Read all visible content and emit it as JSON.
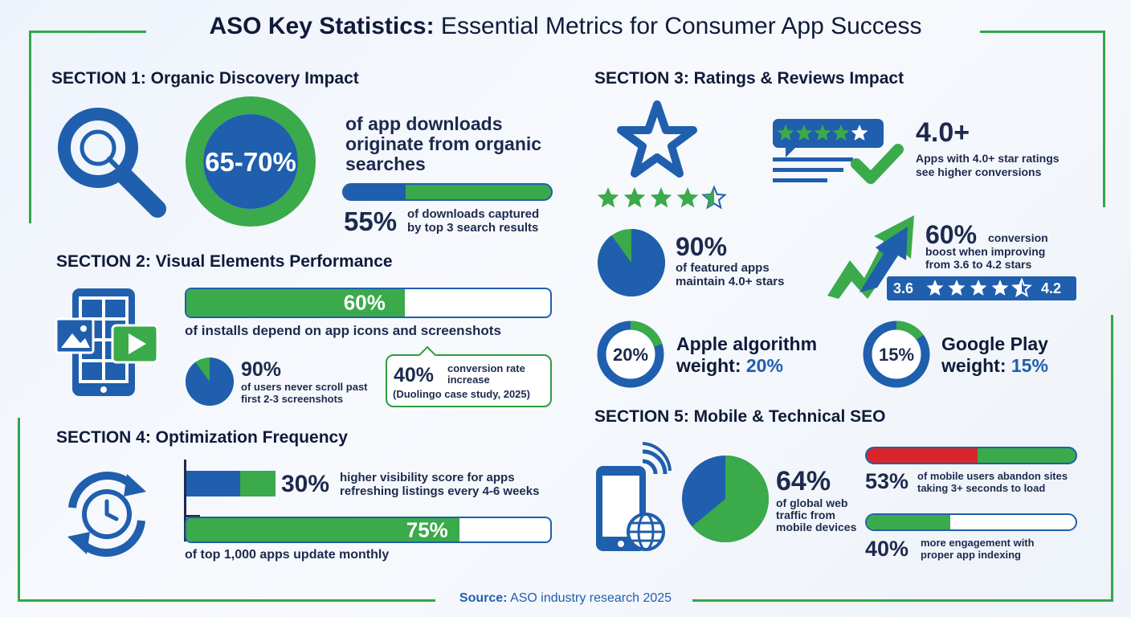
{
  "title": {
    "bold": "ASO Key Statistics:",
    "rest": " Essential Metrics for Consumer App Success"
  },
  "section1": {
    "heading": "SECTION 1: Organic Discovery Impact",
    "donut_label": "65-70%",
    "donut_value": 0.675,
    "headline": [
      "of app downloads",
      "originate from organic",
      "searches"
    ],
    "bar_value": 0.3,
    "stat_big": "55%",
    "stat_text": [
      "of downloads captured",
      "by top 3 search results"
    ],
    "icon": "magnifier-icon"
  },
  "section2": {
    "heading": "SECTION 2: Visual Elements Performance",
    "bar_label": "60%",
    "bar_value": 0.6,
    "bar_caption": "of installs depend on app icons and screenshots",
    "pie_big": "90%",
    "pie_value": 0.9,
    "pie_text": [
      "of users never scroll past",
      "first 2-3 screenshots"
    ],
    "callout_big": "40%",
    "callout_text": [
      "conversion rate",
      "increase"
    ],
    "callout_note": "(Duolingo case study, 2025)",
    "icon": "phone-gallery-icon"
  },
  "section3": {
    "heading": "SECTION 3: Ratings & Reviews Impact",
    "rating_big": "4.0+",
    "rating_text": [
      "Apps with 4.0+ star ratings",
      "see higher conversions"
    ],
    "pie_big": "90%",
    "pie_value": 0.9,
    "pie_text": [
      "of featured apps",
      "maintain 4.0+ stars"
    ],
    "boost_big": "60%",
    "boost_text": [
      "conversion",
      "boost when improving",
      "from 3.6 to 4.2 stars"
    ],
    "scale_from": "3.6",
    "scale_to": "4.2",
    "apple_donut": "20%",
    "apple_value": 0.2,
    "apple_line1": "Apple algorithm",
    "apple_line2_a": "weight:",
    "apple_line2_b": "20%",
    "google_donut": "15%",
    "google_value": 0.15,
    "google_line1": "Google Play",
    "google_line2_a": "weight:",
    "google_line2_b": "15%"
  },
  "section4": {
    "heading": "SECTION 4: Optimization Frequency",
    "stat1_big": "30%",
    "stat1_value": 0.3,
    "stat1_text": [
      "higher visibility score for apps",
      "refreshing listings every 4-6 weeks"
    ],
    "bar_label": "75%",
    "bar_value": 0.75,
    "bar_caption": "of top 1,000 apps update monthly",
    "icon": "refresh-clock-icon"
  },
  "section5": {
    "heading": "SECTION 5: Mobile & Technical SEO",
    "pie_big": "64%",
    "pie_value": 0.64,
    "pie_text": [
      "of global web",
      "traffic from",
      "mobile devices"
    ],
    "abandon_big": "53%",
    "abandon_value": 0.53,
    "abandon_text": [
      "of mobile users abandon sites",
      "taking 3+ seconds to load"
    ],
    "engage_big": "40%",
    "engage_value": 0.4,
    "engage_text": [
      "more engagement with",
      "proper app indexing"
    ],
    "icon": "phone-globe-icon"
  },
  "source": {
    "label": "Source:",
    "text": " ASO industry research 2025"
  },
  "colors": {
    "blue": "#1f5fad",
    "green": "#3aaa4a",
    "red": "#d8262c",
    "navy": "#101b3a"
  }
}
